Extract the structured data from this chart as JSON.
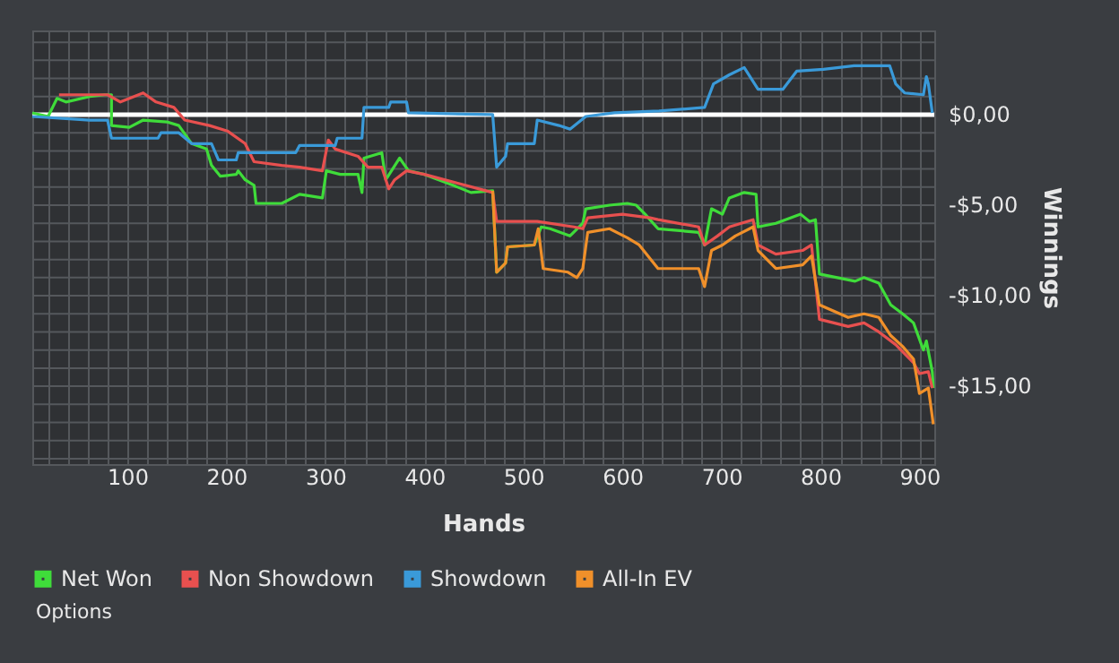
{
  "chart_data": {
    "type": "line",
    "xlabel": "Hands",
    "ylabel": "Winnings",
    "xlim": [
      4,
      915
    ],
    "ylim": [
      -19.3,
      4.65
    ],
    "xticks": [
      {
        "value": 20,
        "label": null
      },
      {
        "value": 40,
        "label": null
      },
      {
        "value": 60,
        "label": null
      },
      {
        "value": 80,
        "label": null
      },
      100,
      {
        "value": 120,
        "label": null
      },
      {
        "value": 140,
        "label": null
      },
      {
        "value": 160,
        "label": null
      },
      {
        "value": 180,
        "label": null
      },
      200,
      {
        "value": 220,
        "label": null
      },
      {
        "value": 240,
        "label": null
      },
      {
        "value": 260,
        "label": null
      },
      {
        "value": 280,
        "label": null
      },
      300,
      {
        "value": 320,
        "label": null
      },
      {
        "value": 340,
        "label": null
      },
      {
        "value": 360,
        "label": null
      },
      {
        "value": 380,
        "label": null
      },
      400,
      {
        "value": 420,
        "label": null
      },
      {
        "value": 440,
        "label": null
      },
      {
        "value": 460,
        "label": null
      },
      {
        "value": 480,
        "label": null
      },
      500,
      {
        "value": 520,
        "label": null
      },
      {
        "value": 540,
        "label": null
      },
      {
        "value": 560,
        "label": null
      },
      {
        "value": 580,
        "label": null
      },
      600,
      {
        "value": 620,
        "label": null
      },
      {
        "value": 640,
        "label": null
      },
      {
        "value": 660,
        "label": null
      },
      {
        "value": 680,
        "label": null
      },
      700,
      {
        "value": 720,
        "label": null
      },
      {
        "value": 740,
        "label": null
      },
      {
        "value": 760,
        "label": null
      },
      {
        "value": 780,
        "label": null
      },
      800,
      {
        "value": 820,
        "label": null
      },
      {
        "value": 840,
        "label": null
      },
      {
        "value": 860,
        "label": null
      },
      {
        "value": 880,
        "label": null
      },
      900
    ],
    "yticks": [
      {
        "value": -19,
        "label": null
      },
      {
        "value": -18,
        "label": null
      },
      {
        "value": -17,
        "label": null
      },
      {
        "value": -16,
        "label": null
      },
      {
        "value": -15,
        "label": "-$15,00"
      },
      {
        "value": -14,
        "label": null
      },
      {
        "value": -13,
        "label": null
      },
      {
        "value": -12,
        "label": null
      },
      {
        "value": -11,
        "label": null
      },
      {
        "value": -10,
        "label": "-$10,00"
      },
      {
        "value": -9,
        "label": null
      },
      {
        "value": -8,
        "label": null
      },
      {
        "value": -7,
        "label": null
      },
      {
        "value": -6,
        "label": null
      },
      {
        "value": -5,
        "label": "-$5,00"
      },
      {
        "value": -4,
        "label": null
      },
      {
        "value": -3,
        "label": null
      },
      {
        "value": -2,
        "label": null
      },
      {
        "value": -1,
        "label": null
      },
      {
        "value": 0,
        "label": "$0,00"
      },
      {
        "value": 1,
        "label": null
      },
      {
        "value": 2,
        "label": null
      },
      {
        "value": 3,
        "label": null
      },
      {
        "value": 4,
        "label": null
      }
    ],
    "grid": true,
    "legend": "bottom",
    "marker": "none",
    "line_style": "solid",
    "ref_lines": [
      {
        "axis": "y",
        "value": 0,
        "color": "#ffffff"
      }
    ],
    "annotations": [
      "Options"
    ],
    "series": [
      {
        "name": "Net Won",
        "color": "#3fdc3a",
        "x": [
          4,
          20,
          29,
          38,
          62,
          77,
          84,
          84,
          102,
          116,
          140,
          152,
          165,
          180,
          185,
          194,
          210,
          212,
          219,
          228,
          230,
          256,
          274,
          297,
          301,
          315,
          333,
          337,
          339,
          357,
          361,
          375,
          384,
          400,
          429,
          447,
          469,
          473,
          482,
          484,
          511,
          518,
          527,
          547,
          560,
          563,
          587,
          605,
          614,
          623,
          636,
          677,
          683,
          690,
          701,
          708,
          723,
          735,
          737,
          755,
          780,
          789,
          795,
          799,
          835,
          844,
          859,
          871,
          883,
          894,
          904,
          907,
          913,
          914
        ],
        "values": [
          0.1,
          -0.1,
          0.9,
          0.7,
          1.0,
          1.1,
          1.1,
          -0.6,
          -0.7,
          -0.3,
          -0.4,
          -0.6,
          -1.6,
          -1.9,
          -2.8,
          -3.4,
          -3.3,
          -3.1,
          -3.6,
          -3.9,
          -4.9,
          -4.9,
          -4.4,
          -4.6,
          -3.1,
          -3.3,
          -3.3,
          -4.3,
          -2.4,
          -2.1,
          -3.6,
          -2.4,
          -3.1,
          -3.3,
          -3.9,
          -4.3,
          -4.2,
          -8.7,
          -8.2,
          -7.3,
          -7.2,
          -6.2,
          -6.3,
          -6.7,
          -6.0,
          -5.2,
          -5.0,
          -4.9,
          -5.0,
          -5.5,
          -6.3,
          -6.5,
          -7.2,
          -5.2,
          -5.5,
          -4.6,
          -4.3,
          -4.4,
          -6.2,
          -6.0,
          -5.5,
          -5.9,
          -5.8,
          -8.8,
          -9.2,
          -9.0,
          -9.3,
          -10.5,
          -11.0,
          -11.5,
          -13.0,
          -12.5,
          -14.2,
          -15.1
        ]
      },
      {
        "name": "Non Showdown",
        "color": "#e8504f",
        "x": [
          31,
          44,
          80,
          93,
          116,
          129,
          147,
          158,
          183,
          201,
          219,
          228,
          256,
          274,
          297,
          303,
          310,
          333,
          343,
          357,
          364,
          370,
          382,
          400,
          469,
          473,
          514,
          551,
          560,
          565,
          600,
          628,
          636,
          677,
          683,
          696,
          708,
          732,
          737,
          755,
          782,
          791,
          799,
          828,
          844,
          859,
          876,
          894,
          900,
          909,
          913
        ],
        "values": [
          1.1,
          1.1,
          1.1,
          0.7,
          1.2,
          0.7,
          0.4,
          -0.3,
          -0.6,
          -0.9,
          -1.6,
          -2.6,
          -2.8,
          -2.9,
          -3.1,
          -1.4,
          -1.9,
          -2.3,
          -2.9,
          -2.9,
          -4.1,
          -3.6,
          -3.1,
          -3.3,
          -4.3,
          -5.9,
          -5.9,
          -6.2,
          -6.3,
          -5.7,
          -5.5,
          -5.7,
          -5.8,
          -6.2,
          -7.2,
          -6.7,
          -6.2,
          -5.8,
          -7.2,
          -7.7,
          -7.5,
          -7.2,
          -11.3,
          -11.7,
          -11.5,
          -12.0,
          -12.7,
          -13.7,
          -14.3,
          -14.2,
          -15.1
        ]
      },
      {
        "name": "Showdown",
        "color": "#3a9ad9",
        "x": [
          4,
          62,
          80,
          84,
          131,
          134,
          152,
          165,
          185,
          192,
          210,
          212,
          270,
          274,
          310,
          312,
          337,
          339,
          364,
          366,
          382,
          384,
          469,
          473,
          482,
          484,
          511,
          514,
          536,
          547,
          563,
          592,
          637,
          683,
          692,
          708,
          723,
          737,
          762,
          776,
          803,
          834,
          870,
          876,
          885,
          904,
          907,
          909,
          913
        ],
        "values": [
          -0.1,
          -0.3,
          -0.3,
          -1.3,
          -1.3,
          -1.0,
          -1.0,
          -1.6,
          -1.6,
          -2.5,
          -2.5,
          -2.1,
          -2.1,
          -1.7,
          -1.7,
          -1.3,
          -1.3,
          0.4,
          0.4,
          0.7,
          0.7,
          0.1,
          0.0,
          -2.9,
          -2.3,
          -1.6,
          -1.6,
          -0.3,
          -0.6,
          -0.8,
          -0.1,
          0.1,
          0.2,
          0.4,
          1.7,
          2.2,
          2.6,
          1.4,
          1.4,
          2.4,
          2.5,
          2.7,
          2.7,
          1.7,
          1.2,
          1.1,
          2.1,
          1.7,
          0.1
        ]
      },
      {
        "name": "All-In EV",
        "color": "#f0902a",
        "x": [
          469,
          473,
          482,
          484,
          511,
          515,
          520,
          545,
          554,
          560,
          565,
          587,
          605,
          617,
          636,
          677,
          683,
          690,
          701,
          714,
          732,
          737,
          755,
          782,
          791,
          799,
          828,
          844,
          859,
          871,
          883,
          894,
          900,
          909,
          914
        ],
        "values": [
          -4.2,
          -8.7,
          -8.2,
          -7.3,
          -7.2,
          -6.3,
          -8.5,
          -8.7,
          -9.0,
          -8.5,
          -6.5,
          -6.3,
          -6.8,
          -7.2,
          -8.5,
          -8.5,
          -9.5,
          -7.5,
          -7.2,
          -6.7,
          -6.2,
          -7.5,
          -8.5,
          -8.3,
          -7.8,
          -10.5,
          -11.2,
          -11.0,
          -11.2,
          -12.2,
          -12.8,
          -13.5,
          -15.4,
          -15.1,
          -17.1
        ]
      }
    ]
  }
}
